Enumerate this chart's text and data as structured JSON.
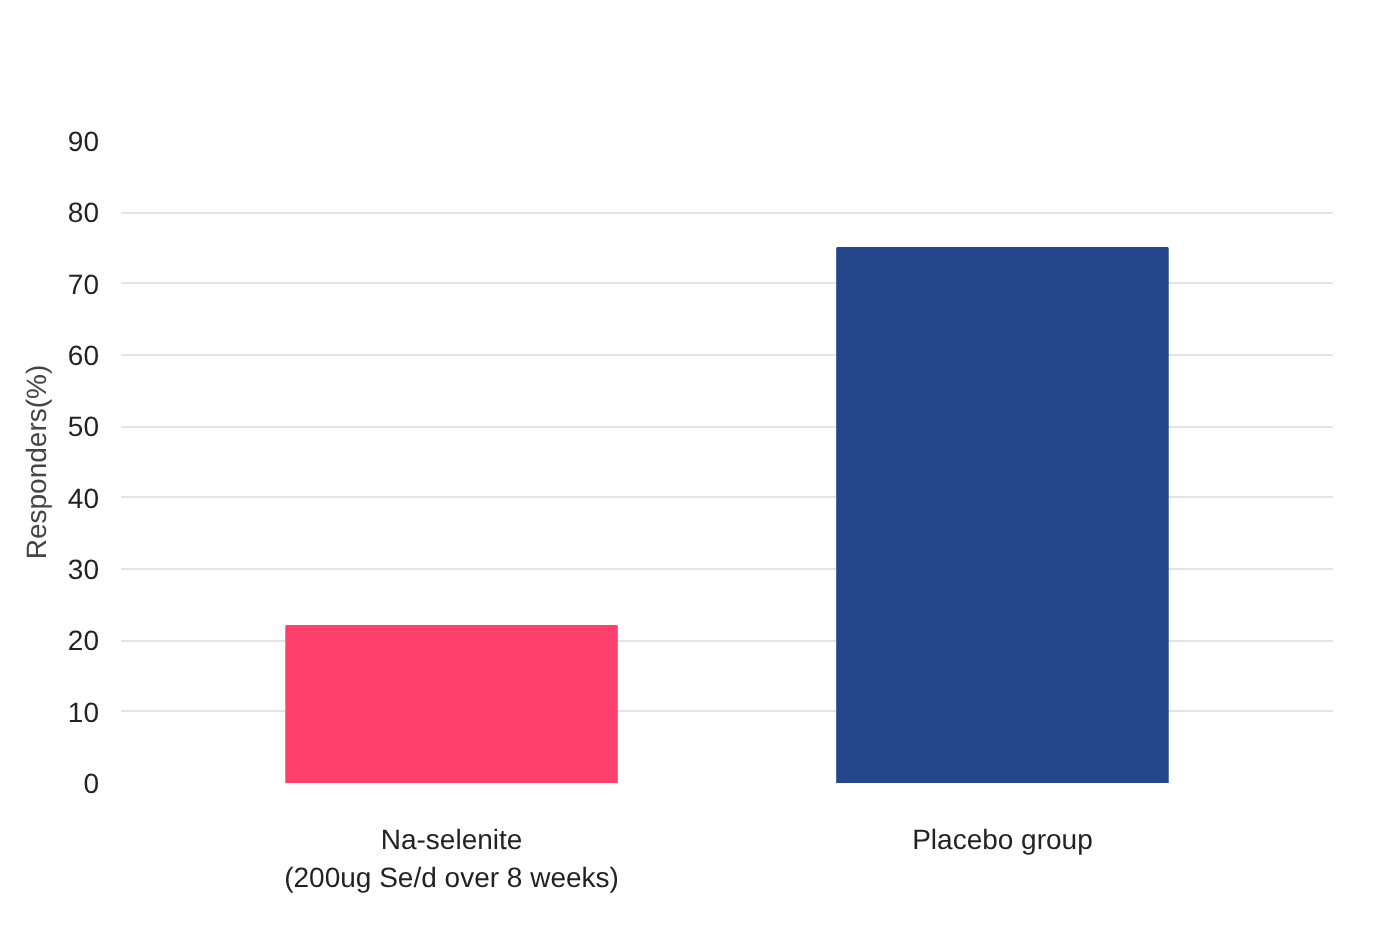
{
  "chart_data": {
    "type": "bar",
    "ylabel": "Responders(%)",
    "categories": [
      "Na-selenite\n(200ug Se/d over 8 weeks)",
      "Placebo group"
    ],
    "values": [
      22,
      75
    ],
    "colors": [
      "#ff3f6c",
      "#24468a"
    ],
    "ylim": [
      0,
      90
    ],
    "yticks": [
      0,
      10,
      20,
      30,
      40,
      50,
      60,
      70,
      80,
      90
    ],
    "grid": "y"
  }
}
